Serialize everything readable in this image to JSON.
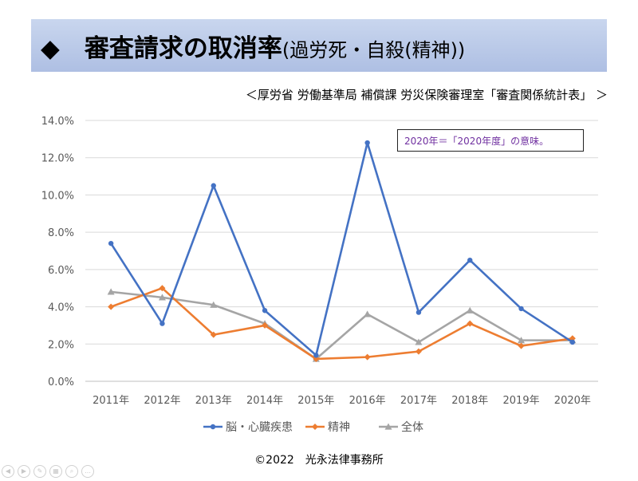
{
  "title": {
    "main": "◆　審査請求の取消率",
    "sub": "(過労死・自殺(精神))"
  },
  "source": "＜厚労省 労働基準局 補償課 労災保険審理室「審査関係統計表」 ＞",
  "note": "2020年＝「2020年度」の意味。",
  "copyright": "©2022　光永法律事務所",
  "footer_icons": [
    "back-icon",
    "forward-icon",
    "pen-icon",
    "slides-icon",
    "zoom-icon",
    "more-icon"
  ],
  "chart_data": {
    "type": "line",
    "title": "",
    "xlabel": "",
    "ylabel": "",
    "categories": [
      "2011年",
      "2012年",
      "2013年",
      "2014年",
      "2015年",
      "2016年",
      "2017年",
      "2018年",
      "2019年",
      "2020年"
    ],
    "ylim": [
      0,
      14
    ],
    "yticks": [
      "0.0%",
      "2.0%",
      "4.0%",
      "6.0%",
      "8.0%",
      "10.0%",
      "12.0%",
      "14.0%"
    ],
    "grid": true,
    "legend_position": "bottom",
    "series": [
      {
        "name": "脳・心臓疾患",
        "color": "#4472c4",
        "marker": "circle",
        "values": [
          7.4,
          3.1,
          10.5,
          3.8,
          1.4,
          12.8,
          3.7,
          6.5,
          3.9,
          2.1
        ]
      },
      {
        "name": "精神",
        "color": "#ed7d31",
        "marker": "diamond",
        "values": [
          4.0,
          5.0,
          2.5,
          3.0,
          1.2,
          1.3,
          1.6,
          3.1,
          1.9,
          2.3
        ]
      },
      {
        "name": "全体",
        "color": "#a5a5a5",
        "marker": "triangle",
        "values": [
          4.8,
          4.5,
          4.1,
          3.1,
          1.2,
          3.6,
          2.1,
          3.8,
          2.2,
          2.2
        ]
      }
    ]
  }
}
